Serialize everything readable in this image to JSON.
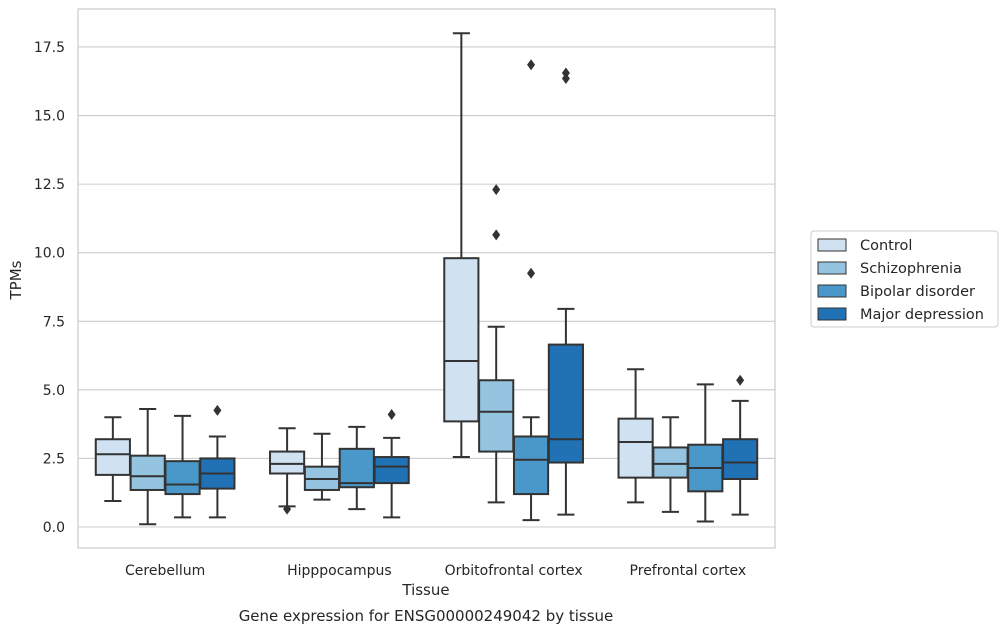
{
  "chart_data": {
    "type": "box",
    "title": "Gene expression for ENSG00000249042 by tissue",
    "xlabel": "Tissue",
    "ylabel": "TPMs",
    "ylim": [
      -0.75,
      18.9
    ],
    "yticks": [
      "0.0",
      "2.5",
      "5.0",
      "7.5",
      "10.0",
      "12.5",
      "15.0",
      "17.5"
    ],
    "ytick_values": [
      0,
      2.5,
      5,
      7.5,
      10,
      12.5,
      15,
      17.5
    ],
    "grid": "horizontal",
    "legend_position": "right",
    "categories": [
      "Cerebellum",
      "Hipppocampus",
      "Orbitofrontal cortex",
      "Prefrontal cortex"
    ],
    "series": [
      {
        "name": "Control",
        "color": "#d0e1f2",
        "boxes": [
          {
            "whislo": 0.95,
            "q1": 1.9,
            "med": 2.65,
            "q3": 3.2,
            "whishi": 4.0,
            "fliers": []
          },
          {
            "whislo": 0.75,
            "q1": 1.95,
            "med": 2.3,
            "q3": 2.75,
            "whishi": 3.6,
            "fliers": [
              0.65
            ]
          },
          {
            "whislo": 2.55,
            "q1": 3.85,
            "med": 6.05,
            "q3": 9.8,
            "whishi": 18.0,
            "fliers": []
          },
          {
            "whislo": 0.9,
            "q1": 1.8,
            "med": 3.1,
            "q3": 3.95,
            "whishi": 5.75,
            "fliers": []
          }
        ]
      },
      {
        "name": "Schizophrenia",
        "color": "#94c4df",
        "boxes": [
          {
            "whislo": 0.1,
            "q1": 1.35,
            "med": 1.85,
            "q3": 2.6,
            "whishi": 4.3,
            "fliers": []
          },
          {
            "whislo": 1.0,
            "q1": 1.35,
            "med": 1.75,
            "q3": 2.2,
            "whishi": 3.4,
            "fliers": []
          },
          {
            "whislo": 0.9,
            "q1": 2.75,
            "med": 4.2,
            "q3": 5.35,
            "whishi": 7.3,
            "fliers": [
              10.65,
              12.3
            ]
          },
          {
            "whislo": 0.55,
            "q1": 1.8,
            "med": 2.3,
            "q3": 2.9,
            "whishi": 4.0,
            "fliers": []
          }
        ]
      },
      {
        "name": "Bipolar disorder",
        "color": "#4a98c9",
        "boxes": [
          {
            "whislo": 0.35,
            "q1": 1.2,
            "med": 1.55,
            "q3": 2.4,
            "whishi": 4.05,
            "fliers": []
          },
          {
            "whislo": 0.65,
            "q1": 1.45,
            "med": 1.6,
            "q3": 2.85,
            "whishi": 3.65,
            "fliers": []
          },
          {
            "whislo": 0.25,
            "q1": 1.2,
            "med": 2.45,
            "q3": 3.3,
            "whishi": 4.0,
            "fliers": [
              9.25,
              16.85
            ]
          },
          {
            "whislo": 0.2,
            "q1": 1.3,
            "med": 2.15,
            "q3": 3.0,
            "whishi": 5.2,
            "fliers": []
          }
        ]
      },
      {
        "name": "Major depression",
        "color": "#2171b5",
        "boxes": [
          {
            "whislo": 0.35,
            "q1": 1.4,
            "med": 1.95,
            "q3": 2.5,
            "whishi": 3.3,
            "fliers": [
              4.25
            ]
          },
          {
            "whislo": 0.35,
            "q1": 1.6,
            "med": 2.2,
            "q3": 2.55,
            "whishi": 3.25,
            "fliers": [
              4.1
            ]
          },
          {
            "whislo": 0.45,
            "q1": 2.35,
            "med": 3.2,
            "q3": 6.65,
            "whishi": 7.95,
            "fliers": [
              16.35,
              16.55
            ]
          },
          {
            "whislo": 0.45,
            "q1": 1.75,
            "med": 2.35,
            "q3": 3.2,
            "whishi": 4.6,
            "fliers": [
              5.35
            ]
          }
        ]
      }
    ]
  }
}
